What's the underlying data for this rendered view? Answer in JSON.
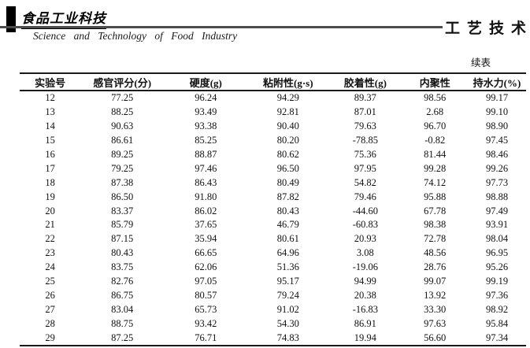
{
  "header": {
    "logo_cn": "食品工业科技",
    "subtitle_en": "Science and Technology of Food Industry",
    "section_cn": "工艺技术"
  },
  "table": {
    "continued_label": "续表",
    "columns": [
      "实验号",
      "感官评分(分)",
      "硬度(g)",
      "粘附性(g·s)",
      "胶着性(g)",
      "内聚性",
      "持水力(%)"
    ],
    "rows": [
      [
        "12",
        "77.25",
        "96.24",
        "94.29",
        "89.37",
        "98.56",
        "99.17"
      ],
      [
        "13",
        "88.25",
        "93.49",
        "92.81",
        "87.01",
        "2.68",
        "99.10"
      ],
      [
        "14",
        "90.63",
        "93.38",
        "90.40",
        "79.63",
        "96.70",
        "98.90"
      ],
      [
        "15",
        "86.61",
        "85.25",
        "80.20",
        "-78.85",
        "-0.82",
        "97.45"
      ],
      [
        "16",
        "89.25",
        "88.87",
        "80.62",
        "75.36",
        "81.44",
        "98.46"
      ],
      [
        "17",
        "79.25",
        "97.46",
        "96.50",
        "97.95",
        "99.28",
        "99.26"
      ],
      [
        "18",
        "87.38",
        "86.43",
        "80.49",
        "54.82",
        "74.12",
        "97.73"
      ],
      [
        "19",
        "86.50",
        "91.80",
        "87.82",
        "79.46",
        "95.88",
        "98.88"
      ],
      [
        "20",
        "83.37",
        "86.02",
        "80.43",
        "-44.60",
        "67.78",
        "97.49"
      ],
      [
        "21",
        "85.79",
        "37.65",
        "46.79",
        "-60.83",
        "98.38",
        "93.91"
      ],
      [
        "22",
        "87.15",
        "35.94",
        "80.61",
        "20.93",
        "72.78",
        "98.04"
      ],
      [
        "23",
        "80.43",
        "66.65",
        "64.96",
        "3.08",
        "48.56",
        "96.95"
      ],
      [
        "24",
        "83.75",
        "62.06",
        "51.36",
        "-19.06",
        "28.76",
        "95.26"
      ],
      [
        "25",
        "82.76",
        "97.05",
        "95.17",
        "94.99",
        "99.07",
        "99.19"
      ],
      [
        "26",
        "86.75",
        "80.57",
        "79.24",
        "20.38",
        "13.92",
        "97.36"
      ],
      [
        "27",
        "83.04",
        "65.73",
        "91.02",
        "-16.83",
        "33.30",
        "98.92"
      ],
      [
        "28",
        "88.75",
        "93.42",
        "54.30",
        "86.91",
        "97.63",
        "95.84"
      ],
      [
        "29",
        "87.25",
        "76.71",
        "74.83",
        "19.94",
        "56.60",
        "97.34"
      ]
    ]
  }
}
